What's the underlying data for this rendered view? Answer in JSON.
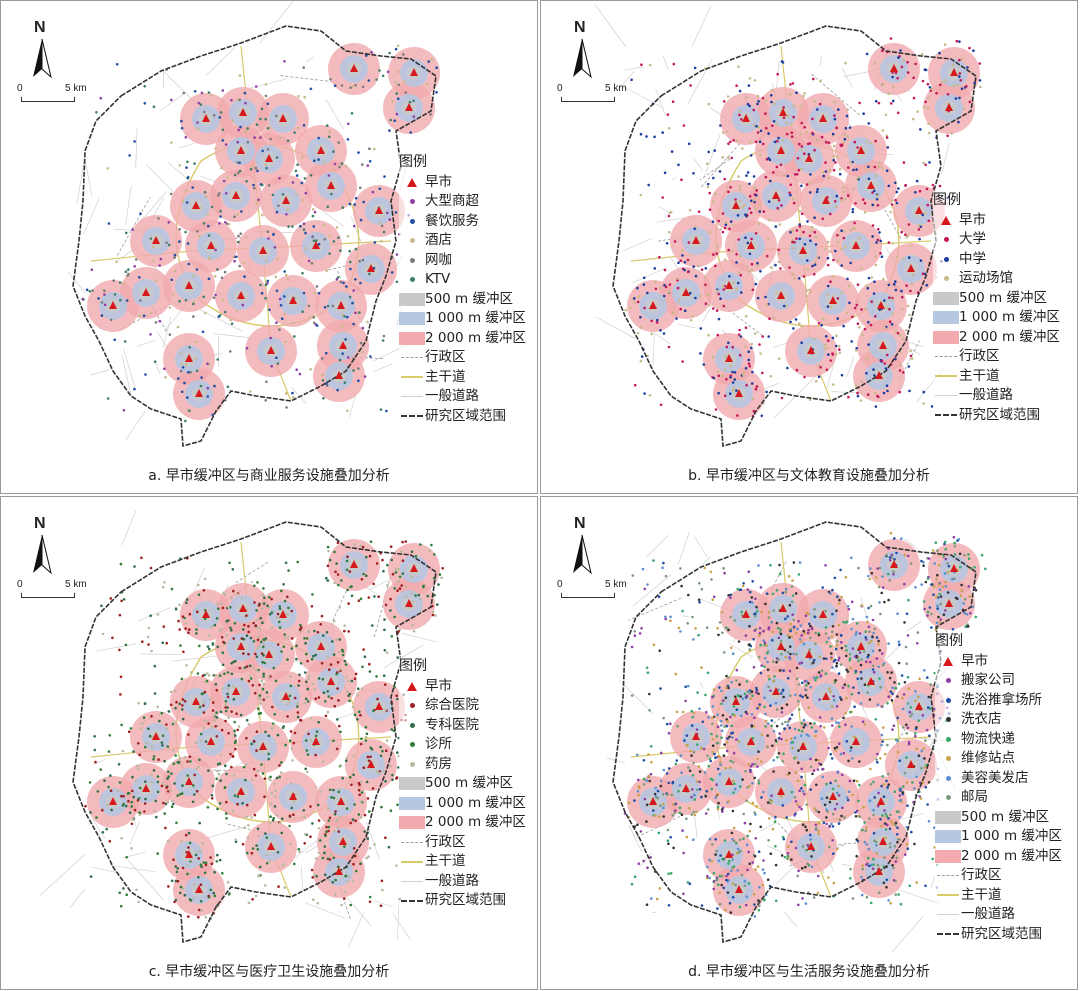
{
  "north_label": "N",
  "scale": {
    "zero": "0",
    "five": "5 km"
  },
  "colors": {
    "buffer500": "#c9c9c9",
    "buffer1000": "#b6c7e0",
    "buffer2000": "#f1aaae",
    "morning_market": "#d7191c",
    "admin_line": "#9a9a9a",
    "main_road": "#d8c96a",
    "general_road": "#d0d0d0",
    "boundary": "#333333"
  },
  "panels": [
    {
      "caption": "a. 早市缓冲区与商业服务设施叠加分析",
      "legend_title": "图例",
      "facilities": [
        {
          "label": "早市",
          "symbol": "triangle",
          "color": "#d7191c"
        },
        {
          "label": "大型商超",
          "symbol": "dot",
          "color": "#8e3fa6"
        },
        {
          "label": "餐饮服务",
          "symbol": "dot",
          "color": "#1f4ea3"
        },
        {
          "label": "酒店",
          "symbol": "dot",
          "color": "#c8b98a"
        },
        {
          "label": "网咖",
          "symbol": "dot",
          "color": "#7a7a7a"
        },
        {
          "label": "KTV",
          "symbol": "dot",
          "color": "#3d7f6a"
        }
      ],
      "buffers": [
        "500 m 缓冲区",
        "1 000 m 缓冲区",
        "2 000 m 缓冲区"
      ],
      "lines": [
        "行政区",
        "主干道",
        "一般道路",
        "研究区域范围"
      ]
    },
    {
      "caption": "b. 早市缓冲区与文体教育设施叠加分析",
      "legend_title": "图例",
      "facilities": [
        {
          "label": "早市",
          "symbol": "triangle",
          "color": "#d7191c"
        },
        {
          "label": "大学",
          "symbol": "dot",
          "color": "#c2185b"
        },
        {
          "label": "中学",
          "symbol": "dot",
          "color": "#1a3c9e"
        },
        {
          "label": "运动场馆",
          "symbol": "dot",
          "color": "#c8b98a"
        }
      ],
      "buffers": [
        "500 m 缓冲区",
        "1 000 m 缓冲区",
        "2 000 m 缓冲区"
      ],
      "lines": [
        "行政区",
        "主干道",
        "一般道路",
        "研究区域范围"
      ]
    },
    {
      "caption": "c. 早市缓冲区与医疗卫生设施叠加分析",
      "legend_title": "图例",
      "facilities": [
        {
          "label": "早市",
          "symbol": "triangle",
          "color": "#d7191c"
        },
        {
          "label": "综合医院",
          "symbol": "dot",
          "color": "#9e1f1f"
        },
        {
          "label": "专科医院",
          "symbol": "dot",
          "color": "#2e6b4a"
        },
        {
          "label": "诊所",
          "symbol": "dot",
          "color": "#2f7d3a"
        },
        {
          "label": "药房",
          "symbol": "dot",
          "color": "#b9b9a0"
        }
      ],
      "buffers": [
        "500 m 缓冲区",
        "1 000 m 缓冲区",
        "2 000 m 缓冲区"
      ],
      "lines": [
        "行政区",
        "主干道",
        "一般道路",
        "研究区域范围"
      ]
    },
    {
      "caption": "d. 早市缓冲区与生活服务设施叠加分析",
      "legend_title": "图例",
      "facilities": [
        {
          "label": "早市",
          "symbol": "triangle",
          "color": "#d7191c"
        },
        {
          "label": "搬家公司",
          "symbol": "dot",
          "color": "#8e3fa6"
        },
        {
          "label": "洗浴推拿场所",
          "symbol": "dot",
          "color": "#1f4ea3"
        },
        {
          "label": "洗衣店",
          "symbol": "dot",
          "color": "#333333"
        },
        {
          "label": "物流快递",
          "symbol": "dot",
          "color": "#3aa66a"
        },
        {
          "label": "维修站点",
          "symbol": "dot",
          "color": "#c8a24a"
        },
        {
          "label": "美容美发店",
          "symbol": "dot",
          "color": "#5a8fd0"
        },
        {
          "label": "邮局",
          "symbol": "dot",
          "color": "#7a9a7a"
        }
      ],
      "buffers": [
        "500 m 缓冲区",
        "1 000 m 缓冲区",
        "2 000 m 缓冲区"
      ],
      "lines": [
        "行政区",
        "主干道",
        "一般道路",
        "研究区域范围"
      ]
    }
  ]
}
